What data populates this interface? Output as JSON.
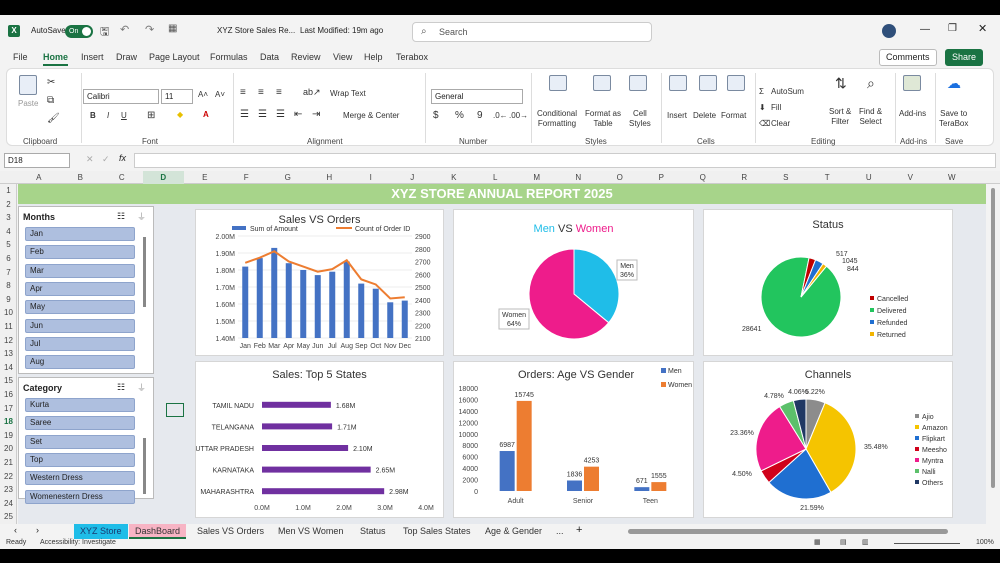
{
  "titlebar": {
    "autosave": "AutoSave",
    "toggle": "On",
    "file_title": "XYZ Store Sales Re...",
    "modified": "Last Modified: 19m ago",
    "search_placeholder": "Search"
  },
  "menu": {
    "tabs": [
      "File",
      "Home",
      "Insert",
      "Draw",
      "Page Layout",
      "Formulas",
      "Data",
      "Review",
      "View",
      "Help",
      "Terabox"
    ],
    "comments": "Comments",
    "share": "Share"
  },
  "ribbon": {
    "paste": "Paste",
    "clipboard": "Clipboard",
    "font_name": "Calibri",
    "font_size": "11",
    "font": "Font",
    "wrap_text": "Wrap Text",
    "merge_center": "Merge & Center",
    "alignment": "Alignment",
    "number_format": "General",
    "number": "Number",
    "cond_fmt": "Conditional\nFormatting",
    "format_table": "Format as\nTable",
    "cell_styles": "Cell\nStyles",
    "styles": "Styles",
    "insert": "Insert",
    "delete": "Delete",
    "format": "Format",
    "cells": "Cells",
    "autosum": "AutoSum",
    "fill": "Fill",
    "clear": "Clear",
    "sort_filter": "Sort &\nFilter",
    "find_select": "Find &\nSelect",
    "editing": "Editing",
    "addins": "Add-ins",
    "addins_group": "Add-ins",
    "save_terabox": "Save to\nTeraBox",
    "save": "Save"
  },
  "formula": {
    "name_box": "D18",
    "fx": "fx"
  },
  "columns": [
    "A",
    "B",
    "C",
    "D",
    "E",
    "F",
    "G",
    "H",
    "I",
    "J",
    "K",
    "L",
    "M",
    "N",
    "O",
    "P",
    "Q",
    "R",
    "S",
    "T",
    "U",
    "V",
    "W"
  ],
  "rows": [
    "1",
    "2",
    "3",
    "4",
    "5",
    "6",
    "7",
    "8",
    "9",
    "10",
    "11",
    "12",
    "13",
    "14",
    "15",
    "16",
    "17",
    "18",
    "19",
    "20",
    "21",
    "22",
    "23",
    "24",
    "25"
  ],
  "dashboard": {
    "banner": "XYZ STORE ANNUAL REPORT 2025"
  },
  "slicers": {
    "months": {
      "title": "Months",
      "items": [
        "Jan",
        "Feb",
        "Mar",
        "Apr",
        "May",
        "Jun",
        "Jul",
        "Aug"
      ]
    },
    "category": {
      "title": "Category",
      "items": [
        "Kurta",
        "Saree",
        "Set",
        "Top",
        "Western Dress",
        "Womenestern Dress"
      ]
    }
  },
  "chart_data": [
    {
      "id": "sales_orders",
      "type": "bar",
      "title": "Sales VS Orders",
      "categories": [
        "Jan",
        "Feb",
        "Mar",
        "Apr",
        "May",
        "Jun",
        "Jul",
        "Aug",
        "Sep",
        "Oct",
        "Nov",
        "Dec"
      ],
      "series": [
        {
          "name": "Sum of Amount",
          "type": "bar",
          "values": [
            1.82,
            1.87,
            1.93,
            1.84,
            1.8,
            1.77,
            1.79,
            1.85,
            1.72,
            1.69,
            1.61,
            1.62
          ]
        },
        {
          "name": "Count of Order ID",
          "type": "line",
          "values": [
            2690,
            2730,
            2780,
            2700,
            2660,
            2620,
            2640,
            2710,
            2560,
            2520,
            2410,
            2420
          ]
        }
      ],
      "y_ticks": [
        "2.00M",
        "1.90M",
        "1.80M",
        "1.70M",
        "1.60M",
        "1.50M",
        "1.40M"
      ],
      "ylim": [
        1.4,
        2.0
      ],
      "y2_ticks": [
        "2900",
        "2800",
        "2700",
        "2600",
        "2500",
        "2400",
        "2300",
        "2200",
        "2100"
      ],
      "y2lim": [
        2100,
        2900
      ],
      "colors": {
        "bar": "#4472c4",
        "line": "#ed7d31"
      }
    },
    {
      "id": "men_women",
      "type": "pie",
      "title_a": "Men",
      "title_vs": "VS",
      "title_b": "Women",
      "slices": [
        {
          "name": "Men",
          "value": 36,
          "label": "36%",
          "color": "#1fbde8"
        },
        {
          "name": "Women",
          "value": 64,
          "label": "64%",
          "color": "#ee1c8b"
        }
      ]
    },
    {
      "id": "status",
      "type": "pie",
      "title": "Status",
      "slices": [
        {
          "name": "Cancelled",
          "value": 844,
          "color": "#c00000"
        },
        {
          "name": "Delivered",
          "value": 28641,
          "color": "#22c55e"
        },
        {
          "name": "Refunded",
          "value": 1045,
          "color": "#1f6fd1"
        },
        {
          "name": "Returned",
          "value": 517,
          "color": "#f2b400"
        }
      ],
      "labels": [
        "517",
        "1045",
        "844",
        "28641"
      ]
    },
    {
      "id": "top_states",
      "type": "bar",
      "orientation": "horizontal",
      "title": "Sales: Top 5 States",
      "categories": [
        "TAMIL NADU",
        "TELANGANA",
        "UTTAR PRADESH",
        "KARNATAKA",
        "MAHARASHTRA"
      ],
      "values": [
        1.68,
        1.71,
        2.1,
        2.65,
        2.98
      ],
      "labels": [
        "1.68M",
        "1.71M",
        "2.10M",
        "2.65M",
        "2.98M"
      ],
      "x_ticks": [
        "0.0M",
        "1.0M",
        "2.0M",
        "3.0M",
        "4.0M"
      ],
      "xlim": [
        0,
        4
      ],
      "color": "#7030a0"
    },
    {
      "id": "age_gender",
      "type": "bar",
      "title": "Orders: Age VS Gender",
      "categories": [
        "Adult",
        "Senior",
        "Teen"
      ],
      "series": [
        {
          "name": "Men",
          "values": [
            6987,
            1836,
            671
          ],
          "color": "#4472c4"
        },
        {
          "name": "Women",
          "values": [
            15745,
            4253,
            1555
          ],
          "color": "#ed7d31"
        }
      ],
      "y_ticks": [
        "18000",
        "16000",
        "14000",
        "12000",
        "10000",
        "8000",
        "6000",
        "4000",
        "2000",
        "0"
      ],
      "ylim": [
        0,
        18000
      ]
    },
    {
      "id": "channels",
      "type": "pie",
      "title": "Channels",
      "slices": [
        {
          "name": "Ajio",
          "value": 6.22,
          "color": "#8c8c8c"
        },
        {
          "name": "Amazon",
          "value": 35.48,
          "color": "#f5c400"
        },
        {
          "name": "Flipkart",
          "value": 21.59,
          "color": "#1f6fd1"
        },
        {
          "name": "Meesho",
          "value": 4.5,
          "color": "#d0021b"
        },
        {
          "name": "Myntra",
          "value": 23.36,
          "color": "#ee1c8b"
        },
        {
          "name": "Nalli",
          "value": 4.78,
          "color": "#5cc06b"
        },
        {
          "name": "Others",
          "value": 4.06,
          "color": "#203864"
        }
      ],
      "labels": [
        "6.22%",
        "35.48%",
        "21.59%",
        "4.50%",
        "23.36%",
        "4.78%",
        "4.06%"
      ]
    }
  ],
  "sheet_tabs": [
    "XYZ Store",
    "DashBoard",
    "Sales VS Orders",
    "Men VS Women",
    "Status",
    "Top Sales States",
    "Age & Gender",
    "..."
  ],
  "status": {
    "ready": "Ready",
    "accessibility": "Accessibility: Investigate",
    "zoom": "100%"
  }
}
